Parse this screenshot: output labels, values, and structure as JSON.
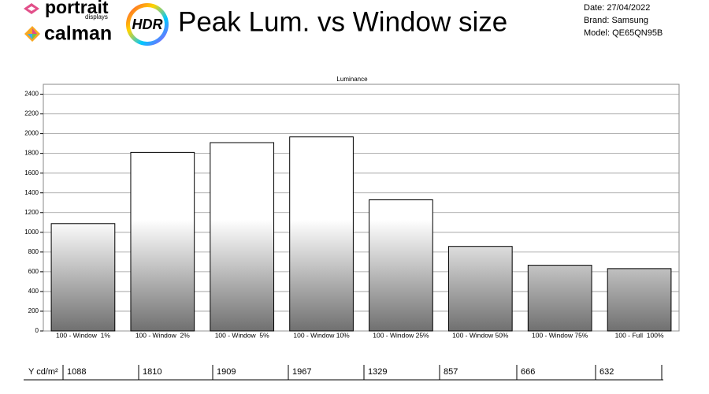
{
  "header": {
    "brand_top": "portrait",
    "brand_sub": "displays",
    "brand_bottom": "calman",
    "badge": "HDR",
    "title": "Peak Lum. vs Window size",
    "date": "Date: 27/04/2022",
    "brand": "Brand: Samsung",
    "model": "Model: QE65QN95B"
  },
  "chart_data": {
    "type": "bar",
    "title": "Luminance",
    "categories": [
      "100 - Window  1%",
      "100 - Window  2%",
      "100 - Window  5%",
      "100 - Window 10%",
      "100 - Window 25%",
      "100 - Window 50%",
      "100 - Window 75%",
      "100 - Full  100%"
    ],
    "values": [
      1088,
      1810,
      1909,
      1967,
      1329,
      857,
      666,
      632
    ],
    "color": "#ffffff",
    "ylim": [
      0,
      2500
    ],
    "yticks": [
      0,
      200,
      400,
      600,
      800,
      1000,
      1200,
      1400,
      1600,
      1800,
      2000,
      2200,
      2400
    ],
    "grid": true
  },
  "table": {
    "label": "Y cd/m²"
  }
}
